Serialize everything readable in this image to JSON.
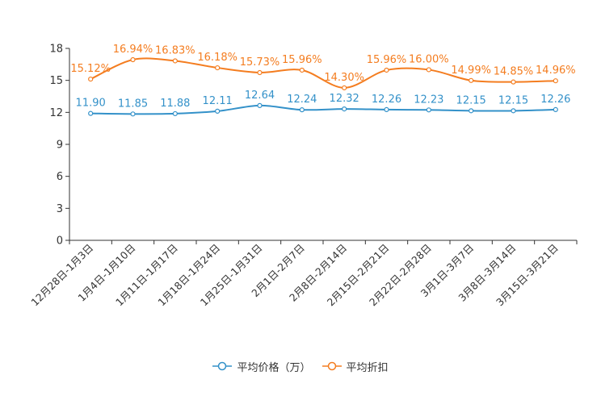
{
  "chart_data": {
    "type": "line",
    "categories": [
      "12月28日-1月3日",
      "1月4日-1月10日",
      "1月11日-1月17日",
      "1月18日-1月24日",
      "1月25日-1月31日",
      "2月1日-2月7日",
      "2月8日-2月14日",
      "2月15日-2月21日",
      "2月22日-2月28日",
      "3月1日-3月7日",
      "3月8日-3月14日",
      "3月15日-3月21日"
    ],
    "series": [
      {
        "name": "平均价格（万）",
        "color": "#3391c9",
        "values": [
          11.9,
          11.85,
          11.88,
          12.11,
          12.64,
          12.24,
          12.32,
          12.26,
          12.23,
          12.15,
          12.15,
          12.26
        ],
        "labels": [
          "11.90",
          "11.85",
          "11.88",
          "12.11",
          "12.64",
          "12.24",
          "12.32",
          "12.26",
          "12.23",
          "12.15",
          "12.15",
          "12.26"
        ]
      },
      {
        "name": "平均折扣",
        "color": "#f47d20",
        "values": [
          15.12,
          16.94,
          16.83,
          16.18,
          15.73,
          15.96,
          14.3,
          15.96,
          16.0,
          14.99,
          14.85,
          14.96
        ],
        "labels": [
          "15.12%",
          "16.94%",
          "16.83%",
          "16.18%",
          "15.73%",
          "15.96%",
          "14.30%",
          "15.96%",
          "16.00%",
          "14.99%",
          "14.85%",
          "14.96%"
        ]
      }
    ],
    "yticks": [
      "0",
      "3",
      "6",
      "9",
      "12",
      "15",
      "18"
    ],
    "ylim": [
      0,
      18
    ],
    "legend_position": "bottom-center"
  }
}
